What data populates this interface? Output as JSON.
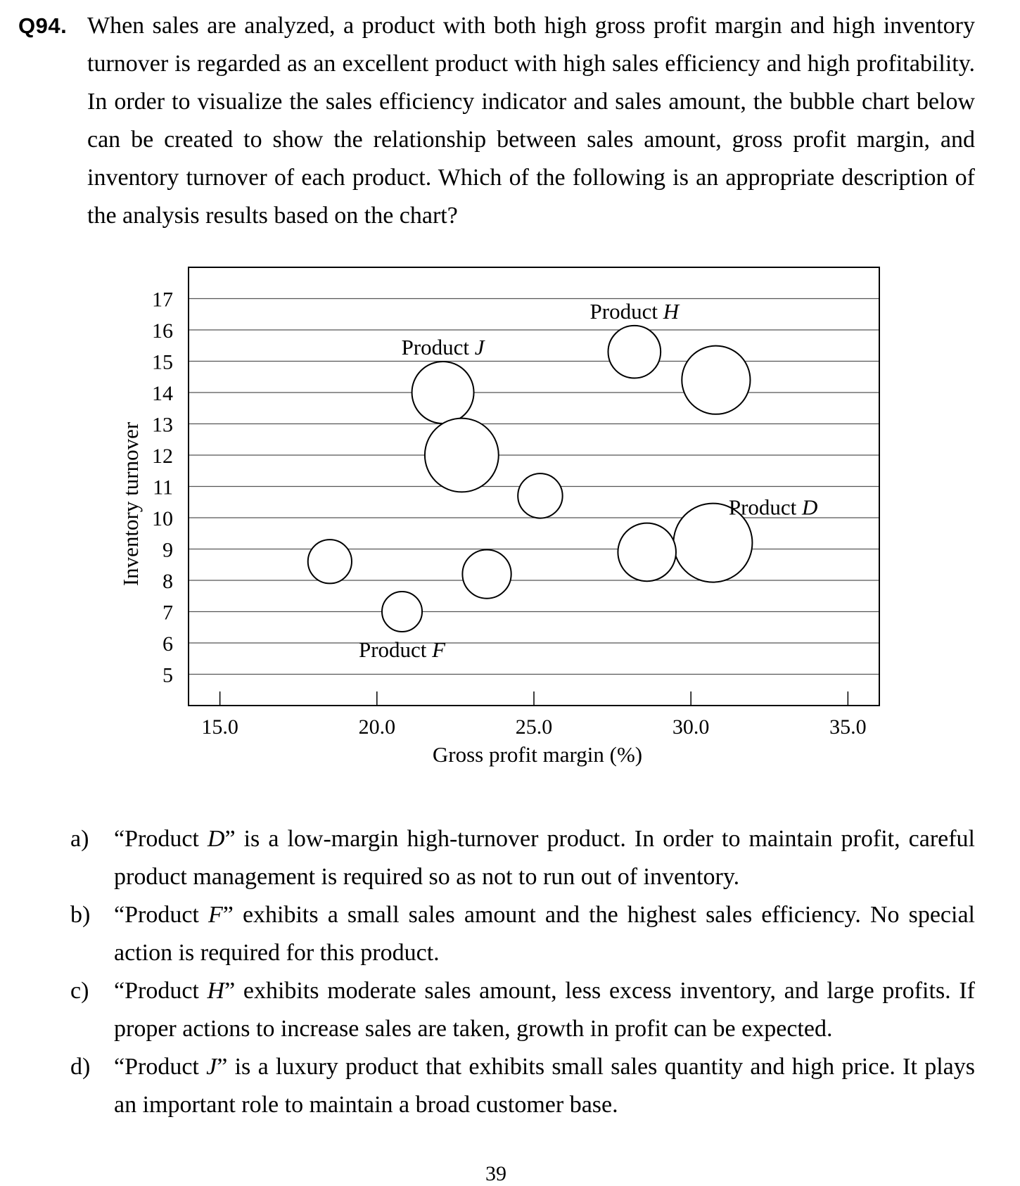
{
  "question": {
    "number": "Q94.",
    "text": "When sales are analyzed, a product with both high gross profit margin and high inventory turnover is regarded as an excellent product with high sales efficiency and high profitability.   In order to visualize the sales efficiency indicator and sales amount, the bubble chart below can be created to show the relationship between sales amount, gross profit margin, and inventory turnover of each product.   Which of the following is an appropriate description of the analysis results based on the chart?"
  },
  "chart_data": {
    "type": "scatter",
    "subtype": "bubble",
    "xlabel": "Gross profit margin (%)",
    "ylabel": "Inventory turnover",
    "xlim": [
      14.0,
      36.0
    ],
    "ylim": [
      4.0,
      18.0
    ],
    "x_ticks": [
      "15.0",
      "20.0",
      "25.0",
      "30.0",
      "35.0"
    ],
    "y_ticks": [
      "5",
      "6",
      "7",
      "8",
      "9",
      "10",
      "11",
      "12",
      "13",
      "14",
      "15",
      "16",
      "17"
    ],
    "grid": "horizontal",
    "points": [
      {
        "label": "Product J",
        "x": 22.1,
        "y": 14.0,
        "size": 1.0
      },
      {
        "label": "",
        "x": 22.7,
        "y": 12.0,
        "size": 1.42
      },
      {
        "label": "Product H",
        "x": 28.2,
        "y": 15.3,
        "size": 0.72
      },
      {
        "label": "",
        "x": 30.8,
        "y": 14.4,
        "size": 1.22
      },
      {
        "label": "",
        "x": 25.2,
        "y": 10.7,
        "size": 0.52
      },
      {
        "label": "Product D",
        "x": 30.7,
        "y": 9.2,
        "size": 1.62
      },
      {
        "label": "",
        "x": 28.6,
        "y": 8.9,
        "size": 0.88
      },
      {
        "label": "",
        "x": 18.5,
        "y": 8.6,
        "size": 0.5
      },
      {
        "label": "",
        "x": 23.5,
        "y": 8.2,
        "size": 0.62
      },
      {
        "label": "Product F",
        "x": 20.8,
        "y": 7.0,
        "size": 0.42
      }
    ]
  },
  "options": [
    {
      "letter": "a)",
      "text": "“Product D” is a low-margin high-turnover product.   In order to maintain profit, careful product management is required so as not to run out of inventory."
    },
    {
      "letter": "b)",
      "text": "“Product F” exhibits a small sales amount and the highest sales efficiency.   No special action is required for this product."
    },
    {
      "letter": "c)",
      "text": "“Product H” exhibits moderate sales amount, less excess inventory, and large profits.   If proper actions to increase sales are taken, growth in profit can be expected."
    },
    {
      "letter": "d)",
      "text": "“Product J” is a luxury product that exhibits small sales quantity and high price.   It plays an important role to maintain a broad customer base."
    }
  ],
  "page_number": "39"
}
